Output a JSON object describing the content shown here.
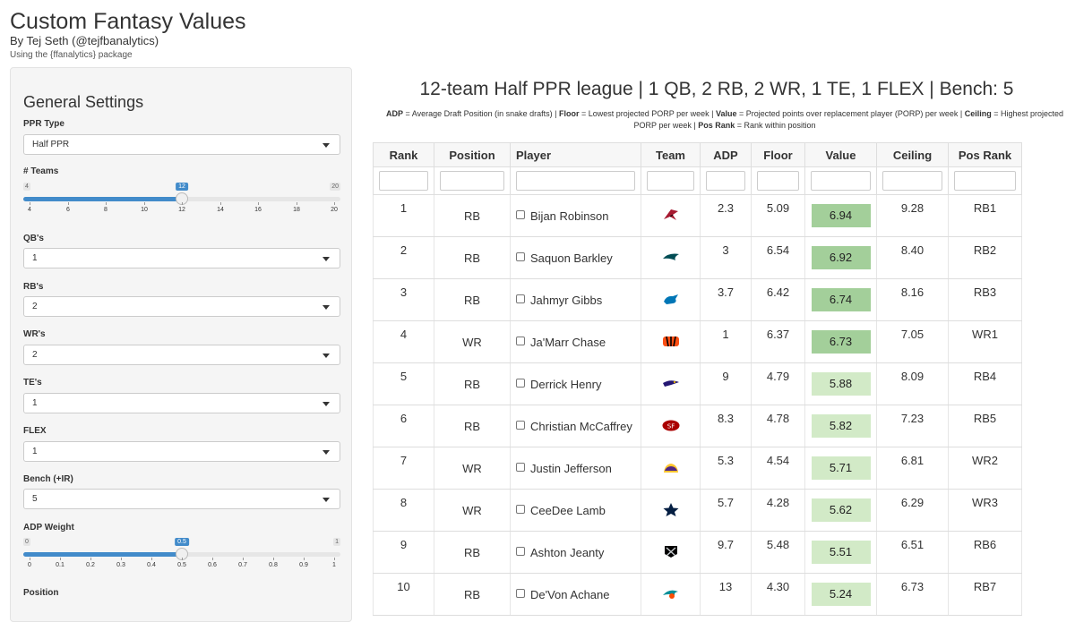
{
  "app": {
    "title": "Custom Fantasy Values",
    "byline": "By Tej Seth (@tejfbanalytics)",
    "note": "Using the {ffanalytics} package"
  },
  "sidebar": {
    "heading": "General Settings",
    "ppr": {
      "label": "PPR Type",
      "value": "Half PPR"
    },
    "teams": {
      "label": "# Teams",
      "min": 4,
      "max": 20,
      "value": 12,
      "ticks": [
        "4",
        "6",
        "8",
        "10",
        "12",
        "14",
        "16",
        "18",
        "20"
      ]
    },
    "qb": {
      "label": "QB's",
      "value": "1"
    },
    "rb": {
      "label": "RB's",
      "value": "2"
    },
    "wr": {
      "label": "WR's",
      "value": "2"
    },
    "te": {
      "label": "TE's",
      "value": "1"
    },
    "flex": {
      "label": "FLEX",
      "value": "1"
    },
    "bench": {
      "label": "Bench (+IR)",
      "value": "5"
    },
    "adp_weight": {
      "label": "ADP Weight",
      "min": 0,
      "max": 1,
      "value": 0.5,
      "ticks": [
        "0",
        "0.1",
        "0.2",
        "0.3",
        "0.4",
        "0.5",
        "0.6",
        "0.7",
        "0.8",
        "0.9",
        "1"
      ]
    },
    "position": {
      "label": "Position"
    }
  },
  "main": {
    "title": "12-team Half PPR league | 1 QB, 2 RB, 2 WR, 1 TE, 1 FLEX | Bench: 5",
    "legend": [
      {
        "term": "ADP",
        "def": " = Average Draft Position (in snake drafts) | "
      },
      {
        "term": "Floor",
        "def": " = Lowest projected PORP per week | "
      },
      {
        "term": "Value",
        "def": " = Projected points over replacement player (PORP) per week | "
      },
      {
        "term": "Ceiling",
        "def": " = Highest projected PORP per week | "
      },
      {
        "term": "Pos Rank",
        "def": " = Rank within position"
      }
    ]
  },
  "table": {
    "headers": [
      "Rank",
      "Position",
      "Player",
      "Team",
      "ADP",
      "Floor",
      "Value",
      "Ceiling",
      "Pos Rank"
    ],
    "rows": [
      {
        "rank": "1",
        "position": "RB",
        "player": "Bijan Robinson",
        "team": "falcons",
        "adp": "2.3",
        "floor": "5.09",
        "value": "6.94",
        "ceiling": "9.28",
        "pos_rank": "RB1"
      },
      {
        "rank": "2",
        "position": "RB",
        "player": "Saquon Barkley",
        "team": "eagles",
        "adp": "3",
        "floor": "6.54",
        "value": "6.92",
        "ceiling": "8.40",
        "pos_rank": "RB2"
      },
      {
        "rank": "3",
        "position": "RB",
        "player": "Jahmyr Gibbs",
        "team": "lions",
        "adp": "3.7",
        "floor": "6.42",
        "value": "6.74",
        "ceiling": "8.16",
        "pos_rank": "RB3"
      },
      {
        "rank": "4",
        "position": "WR",
        "player": "Ja'Marr Chase",
        "team": "bengals",
        "adp": "1",
        "floor": "6.37",
        "value": "6.73",
        "ceiling": "7.05",
        "pos_rank": "WR1"
      },
      {
        "rank": "5",
        "position": "RB",
        "player": "Derrick Henry",
        "team": "ravens",
        "adp": "9",
        "floor": "4.79",
        "value": "5.88",
        "ceiling": "8.09",
        "pos_rank": "RB4"
      },
      {
        "rank": "6",
        "position": "RB",
        "player": "Christian McCaffrey",
        "team": "49ers",
        "adp": "8.3",
        "floor": "4.78",
        "value": "5.82",
        "ceiling": "7.23",
        "pos_rank": "RB5"
      },
      {
        "rank": "7",
        "position": "WR",
        "player": "Justin Jefferson",
        "team": "vikings",
        "adp": "5.3",
        "floor": "4.54",
        "value": "5.71",
        "ceiling": "6.81",
        "pos_rank": "WR2"
      },
      {
        "rank": "8",
        "position": "WR",
        "player": "CeeDee Lamb",
        "team": "cowboys",
        "adp": "5.7",
        "floor": "4.28",
        "value": "5.62",
        "ceiling": "6.29",
        "pos_rank": "WR3"
      },
      {
        "rank": "9",
        "position": "RB",
        "player": "Ashton Jeanty",
        "team": "raiders",
        "adp": "9.7",
        "floor": "5.48",
        "value": "5.51",
        "ceiling": "6.51",
        "pos_rank": "RB6"
      },
      {
        "rank": "10",
        "position": "RB",
        "player": "De'Von Achane",
        "team": "dolphins",
        "adp": "13",
        "floor": "4.30",
        "value": "5.24",
        "ceiling": "6.73",
        "pos_rank": "RB7"
      }
    ]
  },
  "colors": {
    "value_high": "#a3cf9a",
    "value_low": "#d2eac7",
    "slider_accent": "#428bca",
    "falcons": "#a71930",
    "eagles": "#004c54",
    "lions": "#0076b6",
    "bengals": "#fb4f14",
    "ravens": "#241773",
    "49ers": "#aa0000",
    "vikings": "#4f2683",
    "cowboys": "#041e42",
    "raiders": "#000000",
    "dolphins": "#008e97"
  }
}
